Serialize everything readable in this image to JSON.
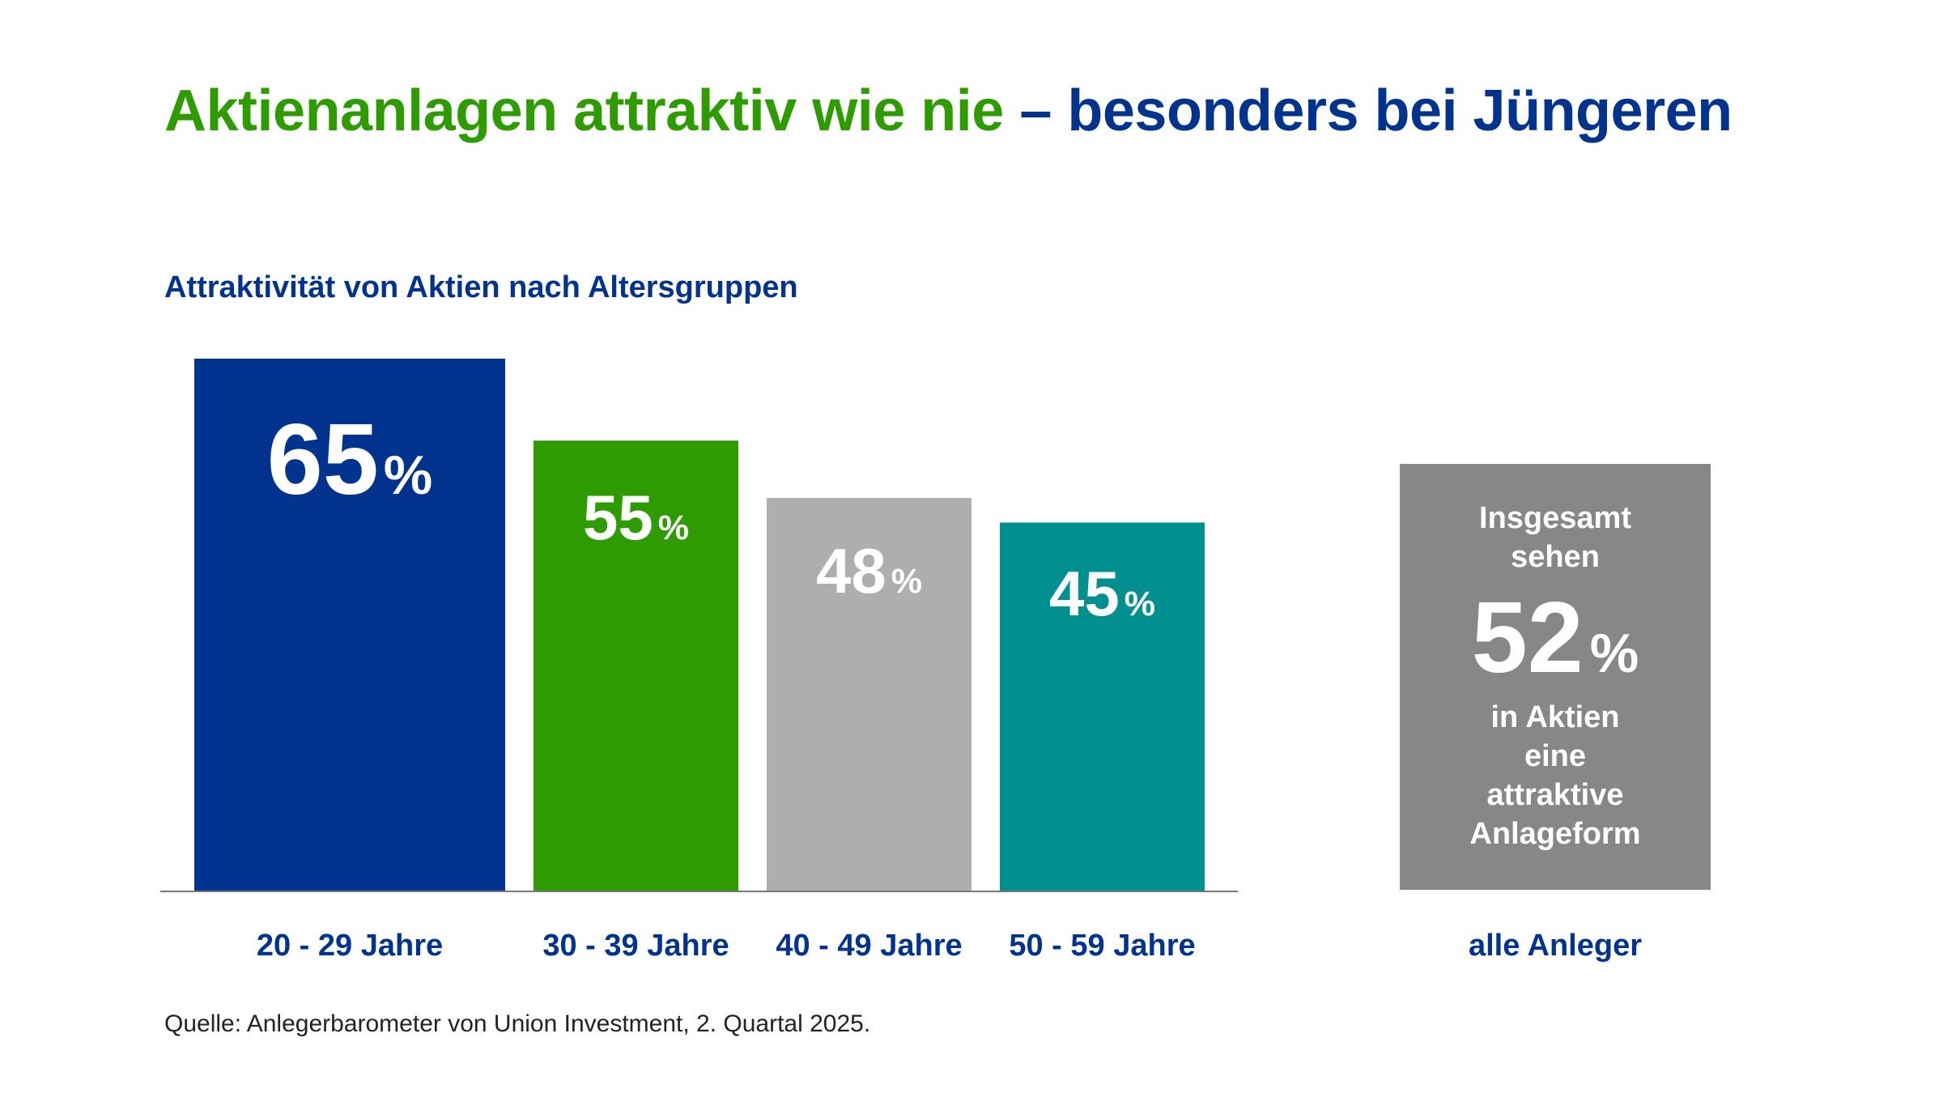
{
  "title": {
    "part1": "Aktienanlagen attraktiv wie nie",
    "part2": "– besonders bei Jüngeren",
    "color1": "#2e9c00",
    "color2": "#00338d"
  },
  "chart_data": {
    "type": "bar",
    "subtitle": "Attraktivität von Aktien nach Altersgruppen",
    "categories": [
      "20 - 29 Jahre",
      "30 - 39 Jahre",
      "40 - 49 Jahre",
      "50 - 59 Jahre"
    ],
    "values": [
      65,
      55,
      48,
      45
    ],
    "value_labels": [
      "65",
      "55",
      "48",
      "45"
    ],
    "unit": "%",
    "colors": [
      "#00338d",
      "#2e9c00",
      "#aeaeae",
      "#008f8f"
    ],
    "ylim": [
      0,
      65
    ],
    "grid": false,
    "summary": {
      "category": "alle Anleger",
      "value": 52,
      "value_label": "52",
      "text_before": [
        "Insgesamt",
        "sehen"
      ],
      "text_after": [
        "in Aktien",
        "eine",
        "attraktive",
        "Anlageform"
      ],
      "color": "#878787"
    }
  },
  "source": "Quelle: Anlegerbarometer von Union Investment, 2. Quartal 2025."
}
